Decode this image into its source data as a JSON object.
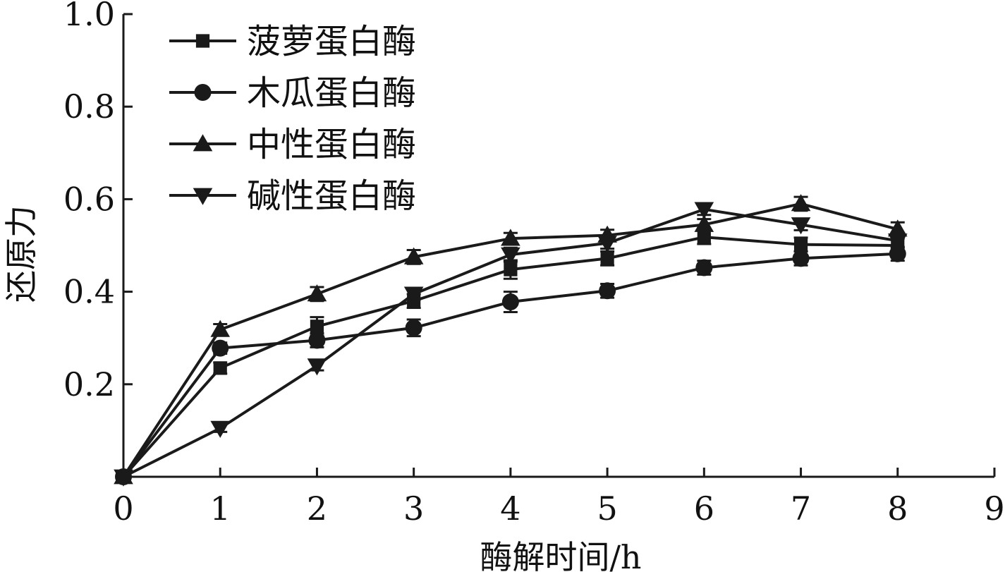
{
  "chart_data": {
    "type": "line",
    "title": "",
    "xlabel": "酶解时间/h",
    "ylabel": "还原力",
    "xlim": [
      0,
      9
    ],
    "ylim": [
      0,
      1.0
    ],
    "xticks": [
      "0",
      "1",
      "2",
      "3",
      "4",
      "5",
      "6",
      "7",
      "8",
      "9"
    ],
    "yticks": [
      "0.2",
      "0.4",
      "0.6",
      "0.8",
      "1.0"
    ],
    "ytick_values": [
      0.2,
      0.4,
      0.6,
      0.8,
      1.0
    ],
    "grid": false,
    "legend_position": "top-left",
    "line_color": "#1a1a1a",
    "x": [
      0,
      1,
      2,
      3,
      4,
      5,
      6,
      7,
      8
    ],
    "series": [
      {
        "name": "菠萝蛋白酶",
        "marker": "square",
        "values": [
          0.0,
          0.235,
          0.325,
          0.38,
          0.448,
          0.472,
          0.518,
          0.502,
          0.5
        ],
        "errors": [
          0.0,
          0.012,
          0.02,
          0.015,
          0.02,
          0.015,
          0.015,
          0.015,
          0.015
        ]
      },
      {
        "name": "木瓜蛋白酶",
        "marker": "circle",
        "values": [
          0.0,
          0.278,
          0.295,
          0.322,
          0.378,
          0.402,
          0.452,
          0.472,
          0.482
        ],
        "errors": [
          0.0,
          0.012,
          0.015,
          0.018,
          0.022,
          0.015,
          0.015,
          0.015,
          0.015
        ]
      },
      {
        "name": "中性蛋白酶",
        "marker": "triangle-up",
        "values": [
          0.0,
          0.318,
          0.395,
          0.475,
          0.515,
          0.522,
          0.545,
          0.59,
          0.535
        ],
        "errors": [
          0.0,
          0.012,
          0.015,
          0.015,
          0.012,
          0.012,
          0.012,
          0.015,
          0.015
        ]
      },
      {
        "name": "碱性蛋白酶",
        "marker": "triangle-down",
        "values": [
          0.0,
          0.105,
          0.24,
          0.395,
          0.48,
          0.505,
          0.578,
          0.545,
          0.51
        ],
        "errors": [
          0.0,
          0.008,
          0.01,
          0.012,
          0.015,
          0.012,
          0.012,
          0.012,
          0.015
        ]
      }
    ]
  }
}
